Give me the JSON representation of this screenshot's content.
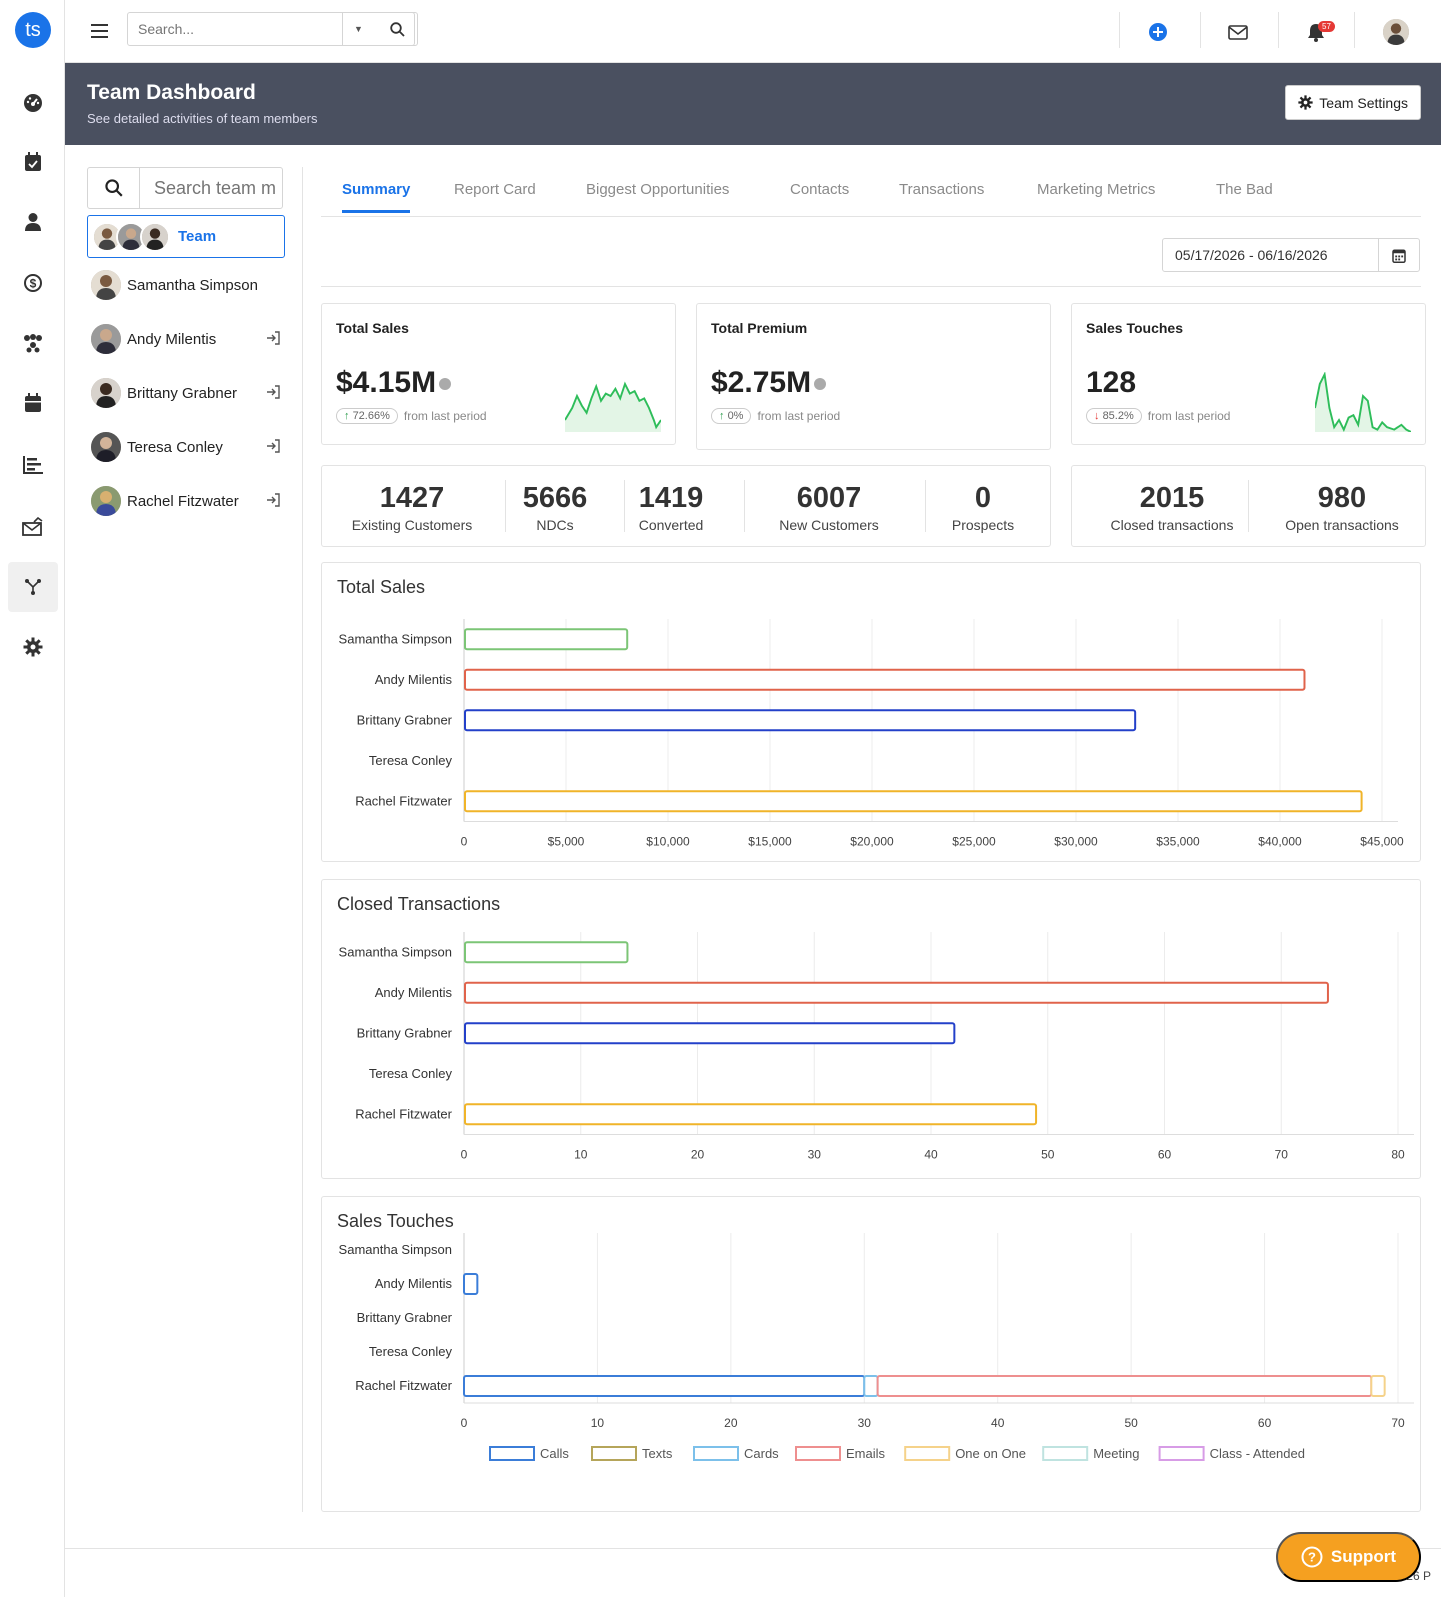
{
  "app": {
    "logo": "ts"
  },
  "leftnav": {
    "icons": [
      "dashboard-icon",
      "calendar-check-icon",
      "user-icon",
      "sales-icon",
      "network-icon",
      "calendar-icon",
      "chart-bar-icon",
      "mail-chart-icon",
      "flow-icon",
      "gear-icon"
    ]
  },
  "topbar": {
    "search_placeholder": "Search...",
    "notifications_count": "57"
  },
  "banner": {
    "title": "Team Dashboard",
    "subtitle": "See detailed activities of team members",
    "settings_label": "Team Settings"
  },
  "members": {
    "search_placeholder": "Search team m",
    "team_label": "Team",
    "items": [
      {
        "name": "Samantha Simpson",
        "login": false
      },
      {
        "name": "Andy Milentis",
        "login": true
      },
      {
        "name": "Brittany Grabner",
        "login": true
      },
      {
        "name": "Teresa Conley",
        "login": true
      },
      {
        "name": "Rachel Fitzwater",
        "login": true
      }
    ]
  },
  "tabs": [
    "Summary",
    "Report Card",
    "Biggest Opportunities",
    "Contacts",
    "Transactions",
    "Marketing Metrics",
    "The Bad"
  ],
  "active_tab": "Summary",
  "date_range": "05/17/2026 - 06/16/2026",
  "kpis": [
    {
      "title": "Total Sales",
      "value": "$4.15M",
      "change": "72.66%",
      "direction": "up",
      "suffix": "from last period",
      "color": "#2e9e4f"
    },
    {
      "title": "Total Premium",
      "value": "$2.75M",
      "change": "0%",
      "direction": "up",
      "suffix": "from last period",
      "color": "#2e9e4f"
    },
    {
      "title": "Sales Touches",
      "value": "128",
      "change": "85.2%",
      "direction": "down",
      "suffix": "from last period",
      "color": "#e53935"
    }
  ],
  "stats": [
    {
      "value": "1427",
      "label": "Existing Customers"
    },
    {
      "value": "5666",
      "label": "NDCs"
    },
    {
      "value": "1419",
      "label": "Converted"
    },
    {
      "value": "6007",
      "label": "New Customers"
    },
    {
      "value": "0",
      "label": "Prospects"
    }
  ],
  "stats2": [
    {
      "value": "2015",
      "label": "Closed transactions"
    },
    {
      "value": "980",
      "label": "Open transactions"
    }
  ],
  "chart_data": [
    {
      "type": "bar",
      "title": "Total Sales",
      "orientation": "horizontal",
      "categories": [
        "Samantha Simpson",
        "Andy Milentis",
        "Brittany Grabner",
        "Teresa Conley",
        "Rachel Fitzwater"
      ],
      "values": [
        8000,
        41200,
        32900,
        0,
        44000
      ],
      "colors": [
        "#7cc576",
        "#e0634b",
        "#2340c9",
        "#999999",
        "#f0b429"
      ],
      "xticks": [
        "0",
        "$5,000",
        "$10,000",
        "$15,000",
        "$20,000",
        "$25,000",
        "$30,000",
        "$35,000",
        "$40,000",
        "$45,000"
      ],
      "xlim": [
        0,
        45000
      ],
      "grid": true
    },
    {
      "type": "bar",
      "title": "Closed Transactions",
      "orientation": "horizontal",
      "categories": [
        "Samantha Simpson",
        "Andy Milentis",
        "Brittany Grabner",
        "Teresa Conley",
        "Rachel Fitzwater"
      ],
      "values": [
        14,
        74,
        42,
        0,
        49
      ],
      "colors": [
        "#7cc576",
        "#e0634b",
        "#2340c9",
        "#999999",
        "#f0b429"
      ],
      "xticks": [
        "0",
        "10",
        "20",
        "30",
        "40",
        "50",
        "60",
        "70",
        "80"
      ],
      "xlim": [
        0,
        80
      ],
      "grid": true
    },
    {
      "type": "bar",
      "title": "Sales Touches",
      "orientation": "horizontal",
      "stacked": true,
      "categories": [
        "Samantha Simpson",
        "Andy Milentis",
        "Brittany Grabner",
        "Teresa Conley",
        "Rachel Fitzwater"
      ],
      "series": [
        {
          "name": "Calls",
          "color": "#3b7dd8",
          "values": [
            0,
            1,
            0,
            0,
            30
          ]
        },
        {
          "name": "Texts",
          "color": "#b5a55a",
          "values": [
            0,
            0,
            0,
            0,
            0
          ]
        },
        {
          "name": "Cards",
          "color": "#7cc0ea",
          "values": [
            0,
            0,
            0,
            0,
            1
          ]
        },
        {
          "name": "Emails",
          "color": "#ee8f8f",
          "values": [
            0,
            0,
            0,
            0,
            37
          ]
        },
        {
          "name": "One on One",
          "color": "#f5d28a",
          "values": [
            0,
            0,
            0,
            0,
            1
          ]
        },
        {
          "name": "Meeting",
          "color": "#bfe3e0",
          "values": [
            0,
            0,
            0,
            0,
            0
          ]
        },
        {
          "name": "Class - Attended",
          "color": "#d79ce6",
          "values": [
            0,
            0,
            0,
            0,
            0
          ]
        }
      ],
      "xticks": [
        "0",
        "10",
        "20",
        "30",
        "40",
        "50",
        "60",
        "70"
      ],
      "xlim": [
        0,
        70
      ],
      "grid": true,
      "legend": "bottom"
    }
  ],
  "support_label": "Support",
  "footer": "© 2026 P"
}
